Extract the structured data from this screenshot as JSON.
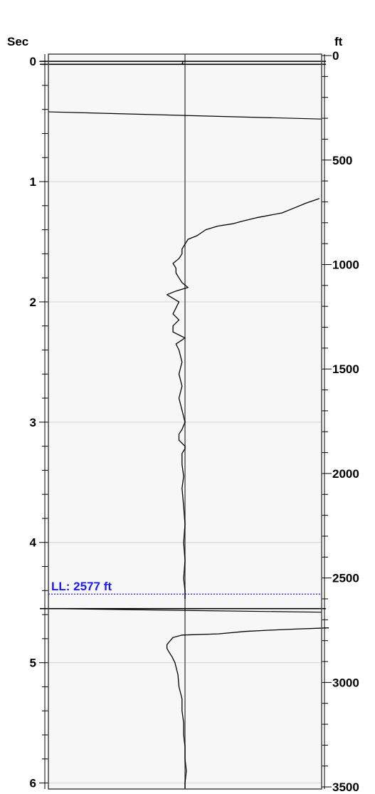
{
  "chart_data": {
    "type": "line",
    "left_axis": {
      "label": "Sec",
      "range": [
        -0.06,
        6.05
      ],
      "ticks": [
        0,
        1,
        2,
        3,
        4,
        5,
        6
      ],
      "minor_step": 0.2
    },
    "right_axis": {
      "label": "ft",
      "range": [
        -7,
        3510
      ],
      "ticks": [
        0,
        500,
        1000,
        1500,
        2000,
        2500,
        3000,
        3500
      ],
      "minor_step": 100
    },
    "grid": true,
    "colors": {
      "plot_background": "#f7f7f7",
      "gridline": "#d9d9d9",
      "trace": "#000000",
      "center_line": "#555555",
      "marker": "#1a1aff"
    },
    "marker": {
      "label": "LL: 2577 ft",
      "depth_ft": 2577
    },
    "horizontal_lines_sec": [
      0,
      0.025,
      4.55
    ],
    "sloped_lines_sec": [
      {
        "from": 0.42,
        "to": 0.48
      },
      {
        "from": 4.55,
        "to": 4.58
      }
    ],
    "series": [
      {
        "points_sec": [
          [
            0.0,
            -0.05
          ],
          [
            0.02,
            -0.09
          ],
          [
            0.025,
            0.0
          ]
        ]
      },
      {
        "points_sec": [
          [
            1.14,
            4.02
          ],
          [
            1.18,
            3.61
          ],
          [
            1.22,
            3.26
          ],
          [
            1.26,
            2.9
          ],
          [
            1.3,
            2.14
          ],
          [
            1.33,
            1.7
          ],
          [
            1.35,
            1.43
          ],
          [
            1.37,
            0.98
          ],
          [
            1.4,
            0.62
          ],
          [
            1.45,
            0.36
          ],
          [
            1.48,
            0.09
          ],
          [
            1.52,
            0.0
          ],
          [
            1.56,
            -0.09
          ],
          [
            1.6,
            -0.09
          ],
          [
            1.64,
            -0.18
          ],
          [
            1.68,
            -0.36
          ],
          [
            1.72,
            -0.27
          ],
          [
            1.76,
            -0.27
          ],
          [
            1.8,
            -0.18
          ],
          [
            1.84,
            -0.09
          ],
          [
            1.88,
            0.09
          ],
          [
            1.91,
            -0.27
          ],
          [
            1.94,
            -0.54
          ],
          [
            1.97,
            -0.36
          ],
          [
            2.0,
            -0.18
          ],
          [
            2.05,
            -0.27
          ],
          [
            2.1,
            -0.36
          ],
          [
            2.15,
            -0.18
          ],
          [
            2.2,
            -0.36
          ],
          [
            2.25,
            -0.36
          ],
          [
            2.3,
            0.0
          ],
          [
            2.35,
            -0.27
          ],
          [
            2.4,
            -0.18
          ],
          [
            2.5,
            -0.09
          ],
          [
            2.6,
            -0.18
          ],
          [
            2.7,
            -0.09
          ],
          [
            2.8,
            -0.18
          ],
          [
            2.9,
            -0.09
          ],
          [
            3.0,
            0.0
          ],
          [
            3.06,
            -0.09
          ],
          [
            3.1,
            -0.18
          ],
          [
            3.15,
            -0.18
          ],
          [
            3.2,
            0.0
          ],
          [
            3.22,
            0.0
          ],
          [
            3.26,
            -0.09
          ],
          [
            3.35,
            -0.09
          ],
          [
            3.45,
            -0.04
          ],
          [
            3.55,
            -0.09
          ],
          [
            3.7,
            -0.04
          ],
          [
            3.85,
            0.0
          ],
          [
            4.0,
            -0.04
          ],
          [
            4.15,
            0.0
          ],
          [
            4.3,
            -0.04
          ],
          [
            4.4,
            0.0
          ],
          [
            4.47,
            0.0
          ]
        ]
      },
      {
        "points_sec": [
          [
            4.71,
            4.3
          ],
          [
            4.72,
            3.3
          ],
          [
            4.73,
            2.5
          ],
          [
            4.74,
            1.8
          ],
          [
            4.76,
            1.0
          ],
          [
            4.77,
            -0.09
          ],
          [
            4.79,
            -0.36
          ],
          [
            4.82,
            -0.45
          ],
          [
            4.85,
            -0.54
          ],
          [
            4.88,
            -0.54
          ],
          [
            4.91,
            -0.48
          ],
          [
            4.95,
            -0.39
          ],
          [
            5.0,
            -0.3
          ],
          [
            5.1,
            -0.21
          ],
          [
            5.2,
            -0.18
          ],
          [
            5.3,
            -0.09
          ],
          [
            5.4,
            -0.09
          ],
          [
            5.5,
            -0.04
          ],
          [
            5.6,
            -0.04
          ],
          [
            5.7,
            0.0
          ],
          [
            5.8,
            0.0
          ],
          [
            5.9,
            0.04
          ],
          [
            6.0,
            0.0
          ],
          [
            6.05,
            0.0
          ]
        ]
      }
    ]
  }
}
